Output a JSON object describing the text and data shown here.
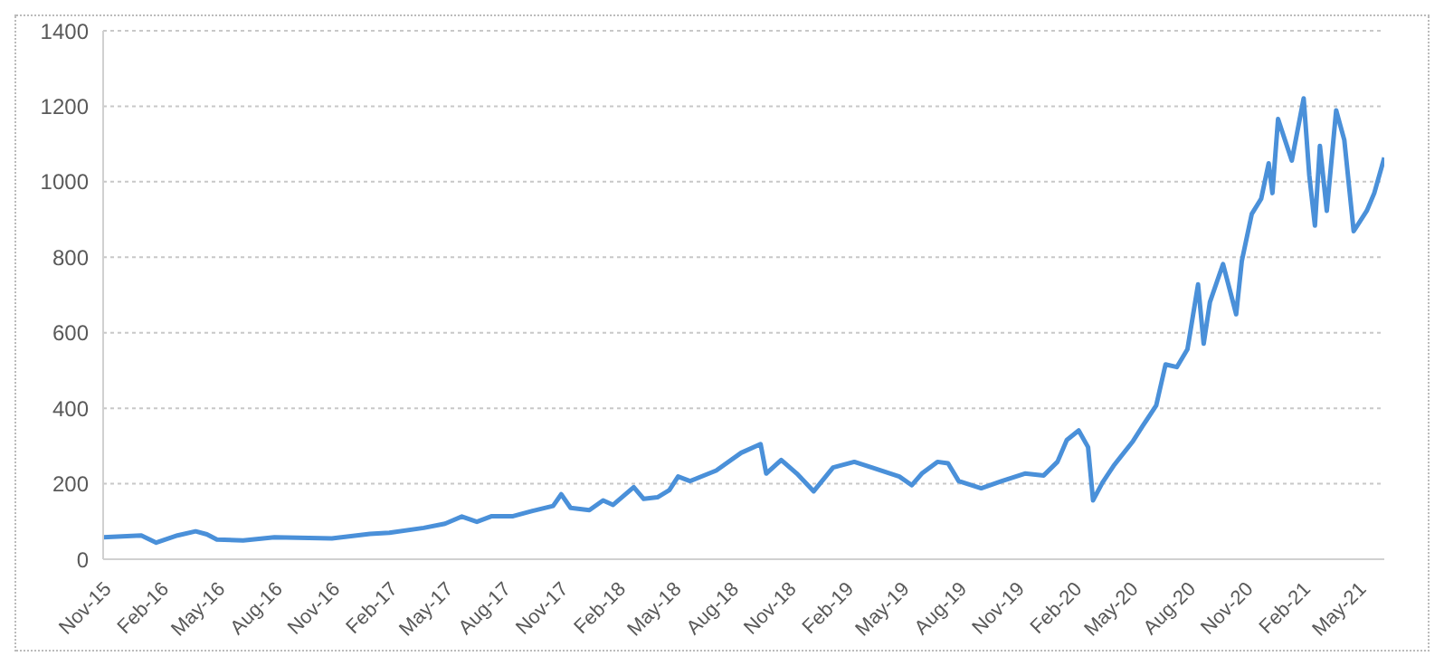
{
  "chart_data": {
    "type": "line",
    "x": [
      "2015-11-01",
      "2016-01-01",
      "2016-01-25",
      "2016-02-28",
      "2016-03-28",
      "2016-04-15",
      "2016-05-01",
      "2016-06-12",
      "2016-08-01",
      "2016-11-01",
      "2017-01-01",
      "2017-02-01",
      "2017-03-28",
      "2017-05-01",
      "2017-05-28",
      "2017-06-21",
      "2017-07-15",
      "2017-08-18",
      "2017-09-18",
      "2017-10-21",
      "2017-11-03",
      "2017-11-18",
      "2017-12-18",
      "2018-01-09",
      "2018-01-25",
      "2018-02-27",
      "2018-03-15",
      "2018-04-06",
      "2018-04-25",
      "2018-05-09",
      "2018-05-28",
      "2018-07-09",
      "2018-08-18",
      "2018-09-18",
      "2018-09-27",
      "2018-10-21",
      "2018-11-15",
      "2018-12-12",
      "2019-01-12",
      "2019-02-15",
      "2019-03-15",
      "2019-04-28",
      "2019-05-18",
      "2019-06-03",
      "2019-06-28",
      "2019-07-15",
      "2019-08-01",
      "2019-09-06",
      "2019-10-09",
      "2019-11-15",
      "2019-12-15",
      "2020-01-06",
      "2020-01-21",
      "2020-02-09",
      "2020-02-24",
      "2020-03-03",
      "2020-03-18",
      "2020-04-06",
      "2020-05-06",
      "2020-05-21",
      "2020-06-12",
      "2020-06-27",
      "2020-07-15",
      "2020-08-01",
      "2020-08-18",
      "2020-08-27",
      "2020-09-06",
      "2020-09-27",
      "2020-10-18",
      "2020-10-27",
      "2020-11-12",
      "2020-11-27",
      "2020-12-09",
      "2020-12-15",
      "2020-12-24",
      "2021-01-15",
      "2021-02-03",
      "2021-02-12",
      "2021-02-21",
      "2021-03-01",
      "2021-03-12",
      "2021-03-27",
      "2021-04-09",
      "2021-04-24",
      "2021-05-15",
      "2021-05-27",
      "2021-06-12"
    ],
    "series": [
      {
        "color": "#4a90d9",
        "values": [
          58,
          63,
          44,
          63,
          74,
          66,
          52,
          50,
          58,
          55,
          67,
          70,
          83,
          94,
          113,
          99,
          114,
          114,
          128,
          141,
          172,
          136,
          130,
          156,
          144,
          191,
          160,
          164,
          183,
          219,
          207,
          235,
          282,
          305,
          227,
          263,
          227,
          180,
          243,
          258,
          243,
          219,
          196,
          227,
          258,
          254,
          207,
          188,
          207,
          227,
          222,
          258,
          316,
          341,
          297,
          156,
          203,
          250,
          313,
          352,
          407,
          516,
          509,
          556,
          728,
          571,
          681,
          782,
          649,
          790,
          915,
          955,
          1049,
          970,
          1166,
          1056,
          1221,
          1017,
          884,
          1095,
          923,
          1189,
          1111,
          869,
          923,
          970,
          1064
        ]
      }
    ],
    "xlim": [
      "2015-11-01",
      "2021-06-12"
    ],
    "xticks": [
      {
        "value": "2015-11-01",
        "label": "Nov-15"
      },
      {
        "value": "2016-02-01",
        "label": "Feb-16"
      },
      {
        "value": "2016-05-01",
        "label": "May-16"
      },
      {
        "value": "2016-08-01",
        "label": "Aug-16"
      },
      {
        "value": "2016-11-01",
        "label": "Nov-16"
      },
      {
        "value": "2017-02-01",
        "label": "Feb-17"
      },
      {
        "value": "2017-05-01",
        "label": "May-17"
      },
      {
        "value": "2017-08-01",
        "label": "Aug-17"
      },
      {
        "value": "2017-11-01",
        "label": "Nov-17"
      },
      {
        "value": "2018-02-01",
        "label": "Feb-18"
      },
      {
        "value": "2018-05-01",
        "label": "May-18"
      },
      {
        "value": "2018-08-01",
        "label": "Aug-18"
      },
      {
        "value": "2018-11-01",
        "label": "Nov-18"
      },
      {
        "value": "2019-02-01",
        "label": "Feb-19"
      },
      {
        "value": "2019-05-01",
        "label": "May-19"
      },
      {
        "value": "2019-08-01",
        "label": "Aug-19"
      },
      {
        "value": "2019-11-01",
        "label": "Nov-19"
      },
      {
        "value": "2020-02-01",
        "label": "Feb-20"
      },
      {
        "value": "2020-05-01",
        "label": "May-20"
      },
      {
        "value": "2020-08-01",
        "label": "Aug-20"
      },
      {
        "value": "2020-11-01",
        "label": "Nov-20"
      },
      {
        "value": "2021-02-01",
        "label": "Feb-21"
      },
      {
        "value": "2021-05-01",
        "label": "May-21"
      }
    ],
    "ylim": [
      0,
      1400
    ],
    "yticks": [
      0,
      200,
      400,
      600,
      800,
      1000,
      1200,
      1400
    ],
    "grid": "y",
    "marker": "none",
    "line_style": "solid",
    "legend": false
  }
}
